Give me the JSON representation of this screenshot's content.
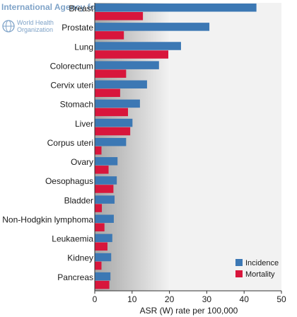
{
  "watermark": {
    "agency_text": "International Agency for Research on Cancer",
    "org_line1": "World Health",
    "org_line2": "Organization",
    "colors": {
      "text": "#7fa3c8"
    }
  },
  "chart_data": {
    "type": "bar",
    "orientation": "horizontal",
    "categories": [
      "Breast",
      "Prostate",
      "Lung",
      "Colorectum",
      "Cervix uteri",
      "Stomach",
      "Liver",
      "Corpus uteri",
      "Ovary",
      "Oesophagus",
      "Bladder",
      "Non-Hodgkin lymphoma",
      "Leukaemia",
      "Kidney",
      "Pancreas"
    ],
    "series": [
      {
        "name": "Incidence",
        "color": "#3c78b4",
        "values": [
          43.3,
          30.7,
          23.1,
          17.2,
          14.0,
          12.1,
          10.1,
          8.4,
          6.1,
          5.9,
          5.3,
          5.1,
          4.7,
          4.4,
          4.2
        ]
      },
      {
        "name": "Mortality",
        "color": "#d8163c",
        "values": [
          12.9,
          7.8,
          19.7,
          8.4,
          6.8,
          8.9,
          9.5,
          1.8,
          3.7,
          5.0,
          1.9,
          2.6,
          3.4,
          1.8,
          3.9
        ]
      }
    ],
    "xlabel": "ASR (W) rate per 100,000",
    "xlim": [
      0,
      50
    ],
    "xticks": [
      "0",
      "10",
      "20",
      "30",
      "40",
      "50"
    ],
    "legend": {
      "position": "bottom-right",
      "entries": [
        "Incidence",
        "Mortality"
      ]
    },
    "background": {
      "gradient": true,
      "gradient_dark": "#a5a5a5",
      "gradient_light": "#f2f2f2",
      "plain": "#f2f2f2"
    },
    "grid": false
  }
}
